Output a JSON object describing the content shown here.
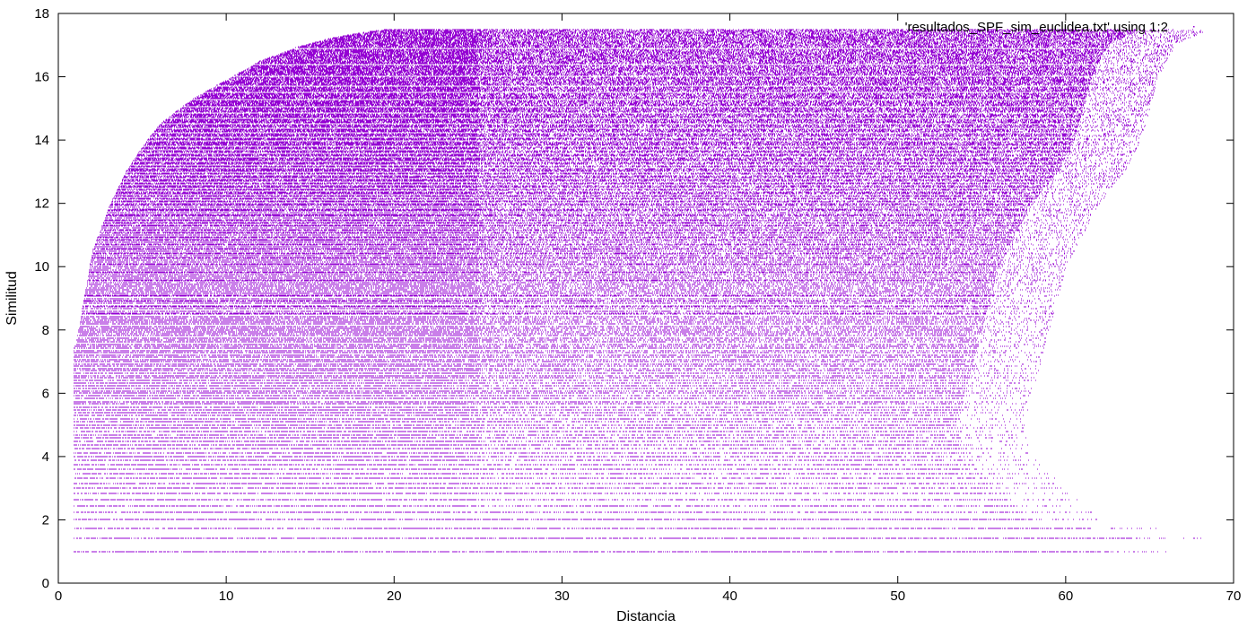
{
  "chart_data": {
    "type": "scatter",
    "xlabel": "Distancia",
    "ylabel": "Similitud",
    "xlim": [
      0,
      70
    ],
    "ylim": [
      0,
      18
    ],
    "x_ticks": [
      0,
      10,
      20,
      30,
      40,
      50,
      60,
      70
    ],
    "y_ticks": [
      0,
      2,
      4,
      6,
      8,
      10,
      12,
      14,
      16,
      18
    ],
    "grid": false,
    "legend_position": "top-right",
    "series": [
      {
        "name": "'resultados_SPF_sim_euclidea.txt' using 1:2",
        "color": "#9400d3",
        "marker": "dot",
        "envelope": {
          "x": [
            1,
            2,
            3,
            4,
            5,
            6,
            8,
            10,
            12,
            14,
            16,
            18,
            19.5,
            20,
            65,
            68.5
          ],
          "y_max": [
            7.5,
            10.5,
            11.9,
            13.0,
            13.8,
            14.5,
            15.3,
            15.9,
            16.5,
            16.9,
            17.2,
            17.4,
            17.5,
            17.5,
            17.5,
            17.5
          ]
        },
        "right_edge": {
          "y": [
            1,
            1.5,
            2,
            3,
            4,
            5,
            6,
            7,
            8,
            9,
            10,
            11,
            12,
            13,
            14,
            15,
            16,
            17,
            17.5
          ],
          "x_max": [
            66,
            68.5,
            62,
            60,
            58,
            57.5,
            58,
            58.5,
            59,
            59.5,
            60,
            61,
            62,
            63.5,
            64.5,
            65,
            65.5,
            66.5,
            68.5
          ]
        },
        "dense_levels_y": [
          1.0,
          1.41,
          1.73,
          2.0,
          2.24,
          2.45,
          2.65,
          2.83,
          3.0,
          3.16,
          3.32,
          3.46,
          3.61,
          3.74,
          3.87,
          4.0,
          4.12,
          4.24,
          4.36,
          4.47,
          4.58,
          4.69,
          4.8,
          4.9,
          5.0,
          5.1,
          5.2,
          5.29,
          5.39,
          5.48,
          5.57,
          5.66,
          5.74,
          5.83,
          5.92,
          6.0,
          6.08,
          6.16,
          6.24,
          6.32,
          6.4,
          6.48,
          6.56,
          6.63,
          6.71,
          6.78,
          6.86,
          6.93,
          7.0,
          7.07,
          7.14,
          7.21,
          7.28,
          7.35,
          7.42,
          7.48,
          7.55,
          7.62,
          7.68,
          7.75,
          7.81,
          7.87,
          7.94,
          8.0,
          8.06,
          8.12,
          8.19,
          8.25,
          8.31,
          8.37,
          8.43,
          8.49,
          8.54,
          8.6,
          8.66,
          8.72,
          8.77,
          8.83,
          8.89,
          8.94,
          9.0,
          9.06,
          9.11,
          9.17,
          9.22,
          9.27,
          9.33,
          9.38,
          9.43,
          9.49,
          9.54,
          9.59,
          9.64,
          9.7,
          9.75,
          9.8,
          9.85,
          9.9,
          9.95,
          10.0,
          10.05,
          10.1,
          10.15,
          10.2,
          10.25,
          10.3,
          10.34,
          10.39,
          10.44,
          10.49,
          10.54,
          10.58,
          10.63,
          10.68,
          10.72,
          10.77,
          10.82,
          10.86,
          10.91,
          10.95,
          11.0,
          11.05,
          11.09,
          11.14,
          11.18,
          11.22,
          11.27,
          11.31,
          11.36,
          11.4,
          11.45,
          11.49,
          11.53,
          11.58,
          11.62,
          11.66,
          11.7,
          11.75,
          11.79,
          11.83,
          11.87,
          11.92,
          11.96,
          12.0,
          12.04,
          12.08,
          12.12,
          12.17,
          12.21,
          12.25,
          12.29,
          12.33,
          12.37,
          12.41,
          12.45,
          12.49,
          12.53,
          12.57,
          12.61,
          12.65,
          12.69,
          12.73,
          12.77,
          12.81,
          12.85,
          12.88,
          12.92,
          12.96,
          13.0,
          13.04,
          13.08,
          13.11,
          13.15,
          13.19,
          13.23,
          13.27,
          13.3,
          13.34,
          13.38,
          13.42,
          13.45,
          13.49,
          13.53,
          13.56,
          13.6,
          13.64,
          13.67,
          13.71,
          13.75,
          13.78,
          13.82,
          13.86,
          13.89,
          13.93,
          13.96,
          14.0,
          14.04,
          14.07,
          14.11,
          14.14,
          14.18,
          14.21,
          14.25,
          14.28,
          14.32,
          14.35,
          14.39,
          14.42,
          14.46,
          14.49,
          14.53,
          14.56,
          14.59,
          14.63,
          14.66,
          14.7,
          14.73,
          14.76,
          14.8,
          14.83,
          14.87,
          14.9,
          14.93,
          14.97,
          15.0,
          15.03,
          15.07,
          15.1,
          15.13,
          15.17,
          15.2,
          15.23,
          15.26,
          15.3,
          15.33,
          15.36,
          15.39,
          15.43,
          15.46,
          15.49,
          15.52,
          15.56,
          15.59,
          15.62,
          15.65,
          15.68,
          15.72,
          15.75,
          15.78,
          15.81,
          15.84,
          15.87,
          15.91,
          15.94,
          15.97,
          16.0,
          16.03,
          16.06,
          16.09,
          16.12,
          16.16,
          16.19,
          16.22,
          16.25,
          16.28,
          16.31,
          16.34,
          16.37,
          16.4,
          16.43,
          16.46,
          16.49,
          16.52,
          16.55,
          16.58,
          16.61,
          16.64,
          16.67,
          16.7,
          16.73,
          16.76,
          16.79,
          16.82,
          16.85,
          16.88,
          16.91,
          16.94,
          16.97,
          17.0,
          17.03,
          17.06,
          17.09,
          17.12,
          17.15,
          17.18,
          17.2,
          17.23,
          17.26,
          17.29,
          17.32,
          17.35,
          17.38,
          17.41,
          17.43,
          17.46,
          17.49
        ]
      }
    ]
  }
}
